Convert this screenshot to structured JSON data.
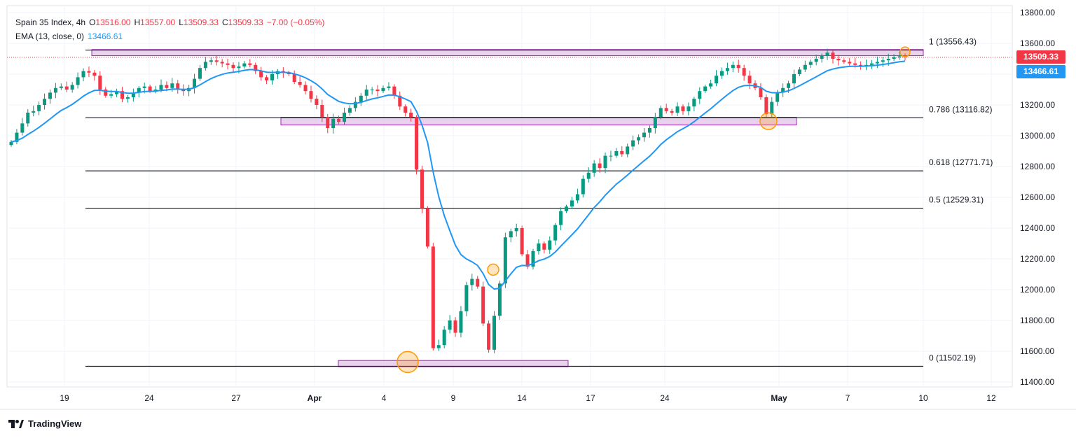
{
  "header": {
    "instrument": "Spain 35 Index, 4h",
    "open_label": "O",
    "open": "13516.00",
    "high_label": "H",
    "high": "13557.00",
    "low_label": "L",
    "low": "13509.33",
    "close_label": "C",
    "close": "13509.33",
    "change": "−7.00 (−0.05%)",
    "ema_label": "EMA (13, close, 0)",
    "ema_value": "13466.61"
  },
  "brand": "TradingView",
  "colors": {
    "up": "#089981",
    "down": "#f23645",
    "ema": "#2196f3",
    "zone_fill": "#e1bee7",
    "zone_stroke": "#9c27b0",
    "marker": "#ff9800",
    "fib_line": "#131722",
    "last_price_bg": "#f23645",
    "ema_bg": "#2196f3"
  },
  "chart_data": {
    "type": "candlestick",
    "title": "Spain 35 Index, 4h",
    "ylim": [
      11350,
      13900
    ],
    "y_ticks": [
      11400,
      11600,
      11800,
      12000,
      12200,
      12400,
      12600,
      12800,
      13000,
      13200,
      13400,
      13600,
      13800
    ],
    "y_tick_labels": [
      "11400.00",
      "11600.00",
      "11800.00",
      "12000.00",
      "12200.00",
      "12400.00",
      "12600.00",
      "12800.00",
      "13000.00",
      "13200.00",
      "13400.00",
      "13600.00",
      "13800.00"
    ],
    "x_ticks": [
      "19",
      "24",
      "27",
      "Apr",
      "4",
      "9",
      "14",
      "17",
      "24",
      "May",
      "7",
      "10",
      "12"
    ],
    "last_price": "13509.33",
    "ema_last": "13466.61",
    "fib_levels": [
      {
        "label": "1 (13556.43)",
        "value": 13556.43
      },
      {
        "label": "0.786 (13116.82)",
        "value": 13116.82
      },
      {
        "label": "0.618 (12771.71)",
        "value": 12771.71
      },
      {
        "label": "0.5 (12529.31)",
        "value": 12529.31
      },
      {
        "label": "0 (11502.19)",
        "value": 11502.19
      }
    ],
    "zones": [
      {
        "name": "resistance",
        "from": 13520,
        "to": 13560
      },
      {
        "name": "support-mid",
        "from": 13070,
        "to": 13120
      },
      {
        "name": "support-low",
        "from": 11500,
        "to": 11540
      }
    ],
    "markers": [
      11530,
      12130,
      13095,
      13545
    ],
    "close_path": [
      12960,
      13020,
      13080,
      13150,
      13160,
      13200,
      13240,
      13280,
      13310,
      13320,
      13300,
      13330,
      13380,
      13420,
      13410,
      13390,
      13300,
      13260,
      13270,
      13290,
      13240,
      13250,
      13280,
      13310,
      13320,
      13290,
      13300,
      13330,
      13310,
      13340,
      13300,
      13290,
      13310,
      13370,
      13440,
      13480,
      13490,
      13480,
      13470,
      13460,
      13440,
      13450,
      13470,
      13460,
      13420,
      13380,
      13360,
      13400,
      13420,
      13410,
      13400,
      13350,
      13330,
      13290,
      13240,
      13200,
      13120,
      13050,
      13110,
      13090,
      13150,
      13180,
      13220,
      13260,
      13300,
      13300,
      13290,
      13310,
      13320,
      13260,
      13190,
      13150,
      13120,
      12780,
      12530,
      12280,
      11620,
      11640,
      11740,
      11800,
      11720,
      11860,
      12030,
      12070,
      12020,
      11780,
      11610,
      11830,
      12040,
      12340,
      12380,
      12400,
      12230,
      12150,
      12250,
      12300,
      12260,
      12320,
      12420,
      12510,
      12540,
      12580,
      12620,
      12720,
      12760,
      12820,
      12790,
      12870,
      12870,
      12900,
      12880,
      12930,
      12970,
      12990,
      13020,
      13050,
      13120,
      13180,
      13160,
      13150,
      13190,
      13160,
      13190,
      13240,
      13290,
      13320,
      13340,
      13390,
      13420,
      13440,
      13460,
      13440,
      13390,
      13340,
      13310,
      13250,
      13140,
      13220,
      13280,
      13310,
      13340,
      13400,
      13430,
      13460,
      13480,
      13500,
      13520,
      13540,
      13500,
      13490,
      13480,
      13470,
      13460,
      13450,
      13460,
      13470,
      13480,
      13490,
      13500,
      13510,
      13516,
      13509
    ]
  }
}
